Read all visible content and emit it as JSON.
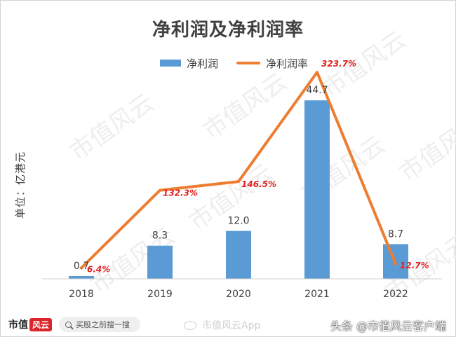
{
  "title": "净利润及净利润率",
  "legend": {
    "bar_label": "净利润",
    "line_label": "净利润率"
  },
  "unit_label": "单位：亿港元",
  "chart_data": {
    "type": "bar",
    "title": "净利润及净利润率",
    "categories": [
      "2018",
      "2019",
      "2020",
      "2021",
      "2022"
    ],
    "series": [
      {
        "name": "净利润",
        "type": "bar",
        "values": [
          0.7,
          8.3,
          12.0,
          44.7,
          8.7
        ],
        "labels": [
          "0.7",
          "8.3",
          "12.0",
          "44.7",
          "8.7"
        ],
        "color": "#5b9bd5"
      },
      {
        "name": "净利润率",
        "type": "line",
        "values": [
          6.4,
          132.3,
          146.5,
          323.7,
          12.7
        ],
        "labels": [
          "6.4%",
          "132.3%",
          "146.5%",
          "323.7%",
          "12.7%"
        ],
        "color": "#ed7d31",
        "label_color": "#e02020"
      }
    ],
    "ylabel": "单位：亿港元",
    "ylim": [
      0,
      50
    ],
    "y2lim": [
      0,
      350
    ],
    "grid": false,
    "legend_position": "top-center"
  },
  "watermark": "市值风云",
  "footer": {
    "brand": "市值",
    "brand_mark": "风云",
    "search_text": "买股之前搜一搜",
    "weibo_text": "市值风云App",
    "credit": "头条 @市值风云客户端"
  }
}
